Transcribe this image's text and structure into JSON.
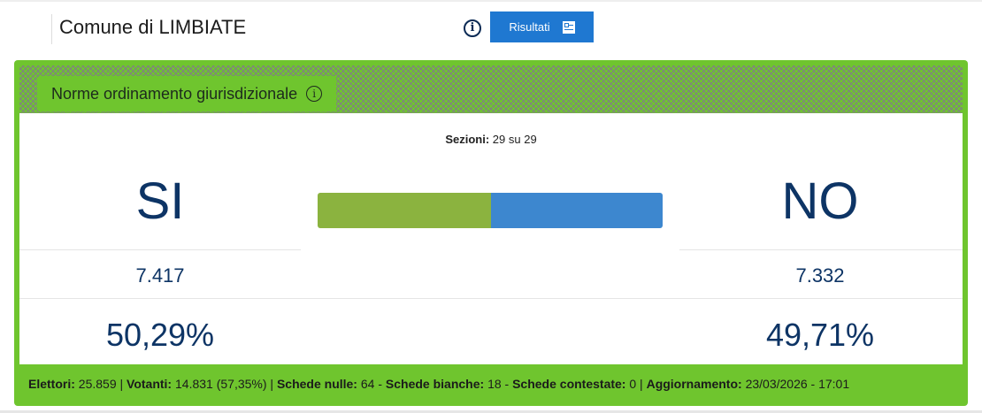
{
  "header": {
    "title": "Comune di LIMBIATE",
    "results_button": "Risultati"
  },
  "question": {
    "title": "Norme ordinamento giurisdizionale"
  },
  "sections": {
    "label": "Sezioni:",
    "value": "29 su 29"
  },
  "yes": {
    "label": "SI",
    "votes": "7.417",
    "percent": "50,29%",
    "share": 50.29,
    "color": "#8bb33f"
  },
  "no": {
    "label": "NO",
    "votes": "7.332",
    "percent": "49,71%",
    "share": 49.71,
    "color": "#3d87cf"
  },
  "footer": {
    "elettori_label": "Elettori:",
    "elettori": "25.859",
    "votanti_label": "Votanti:",
    "votanti": "14.831 (57,35%)",
    "nulle_label": "Schede nulle:",
    "nulle": "64",
    "bianche_label": "Schede bianche:",
    "bianche": "18",
    "contestate_label": "Schede contestate:",
    "contestate": "0",
    "agg_label": "Aggiornamento:",
    "agg": "23/03/2026 - 17:01"
  },
  "colors": {
    "accent": "#6fc52e",
    "button": "#1f78d1",
    "text": "#0d3465"
  }
}
